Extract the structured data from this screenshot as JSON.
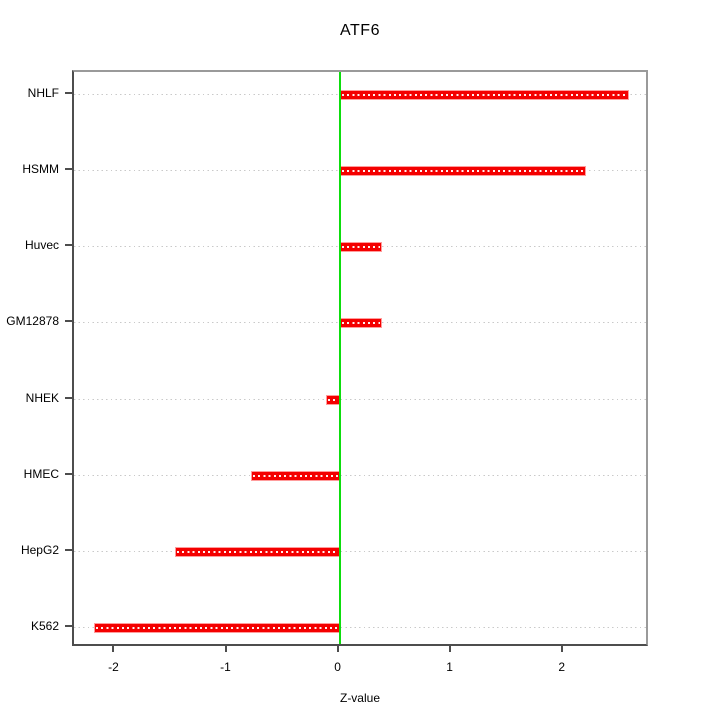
{
  "figure": {
    "title": "ATF6",
    "x_axis_label": "Z-value"
  },
  "chart_data": {
    "type": "bar",
    "orientation": "horizontal",
    "title": "ATF6",
    "xlabel": "Z-value",
    "ylabel": "",
    "categories": [
      "NHLF",
      "HSMM",
      "Huvec",
      "GM12878",
      "NHEK",
      "HMEC",
      "HepG2",
      "K562"
    ],
    "categories_order": "top-to-bottom",
    "values": [
      2.58,
      2.2,
      0.38,
      0.38,
      -0.12,
      -0.79,
      -1.47,
      -2.19
    ],
    "xlim": [
      -2.37,
      2.77
    ],
    "x_ticks": [
      -2,
      -1,
      0,
      1,
      2
    ],
    "x_tick_labels": [
      "-2",
      "-1",
      "0",
      "1",
      "2"
    ],
    "zero_reference_line_x": 0,
    "legend": null,
    "grid": "horizontal dotted line at each category",
    "colors": {
      "bar_fill": "#f40000",
      "bar_edge": "#ff9c9c",
      "bar_center_dots": "#ffffff",
      "zero_line": "#0ddd0d",
      "gridline": "#c9c9c9",
      "axis_dark": "#4d4d4d",
      "axis_light": "#9a9a9a",
      "background": "#ffffff",
      "text": "#000000"
    }
  }
}
